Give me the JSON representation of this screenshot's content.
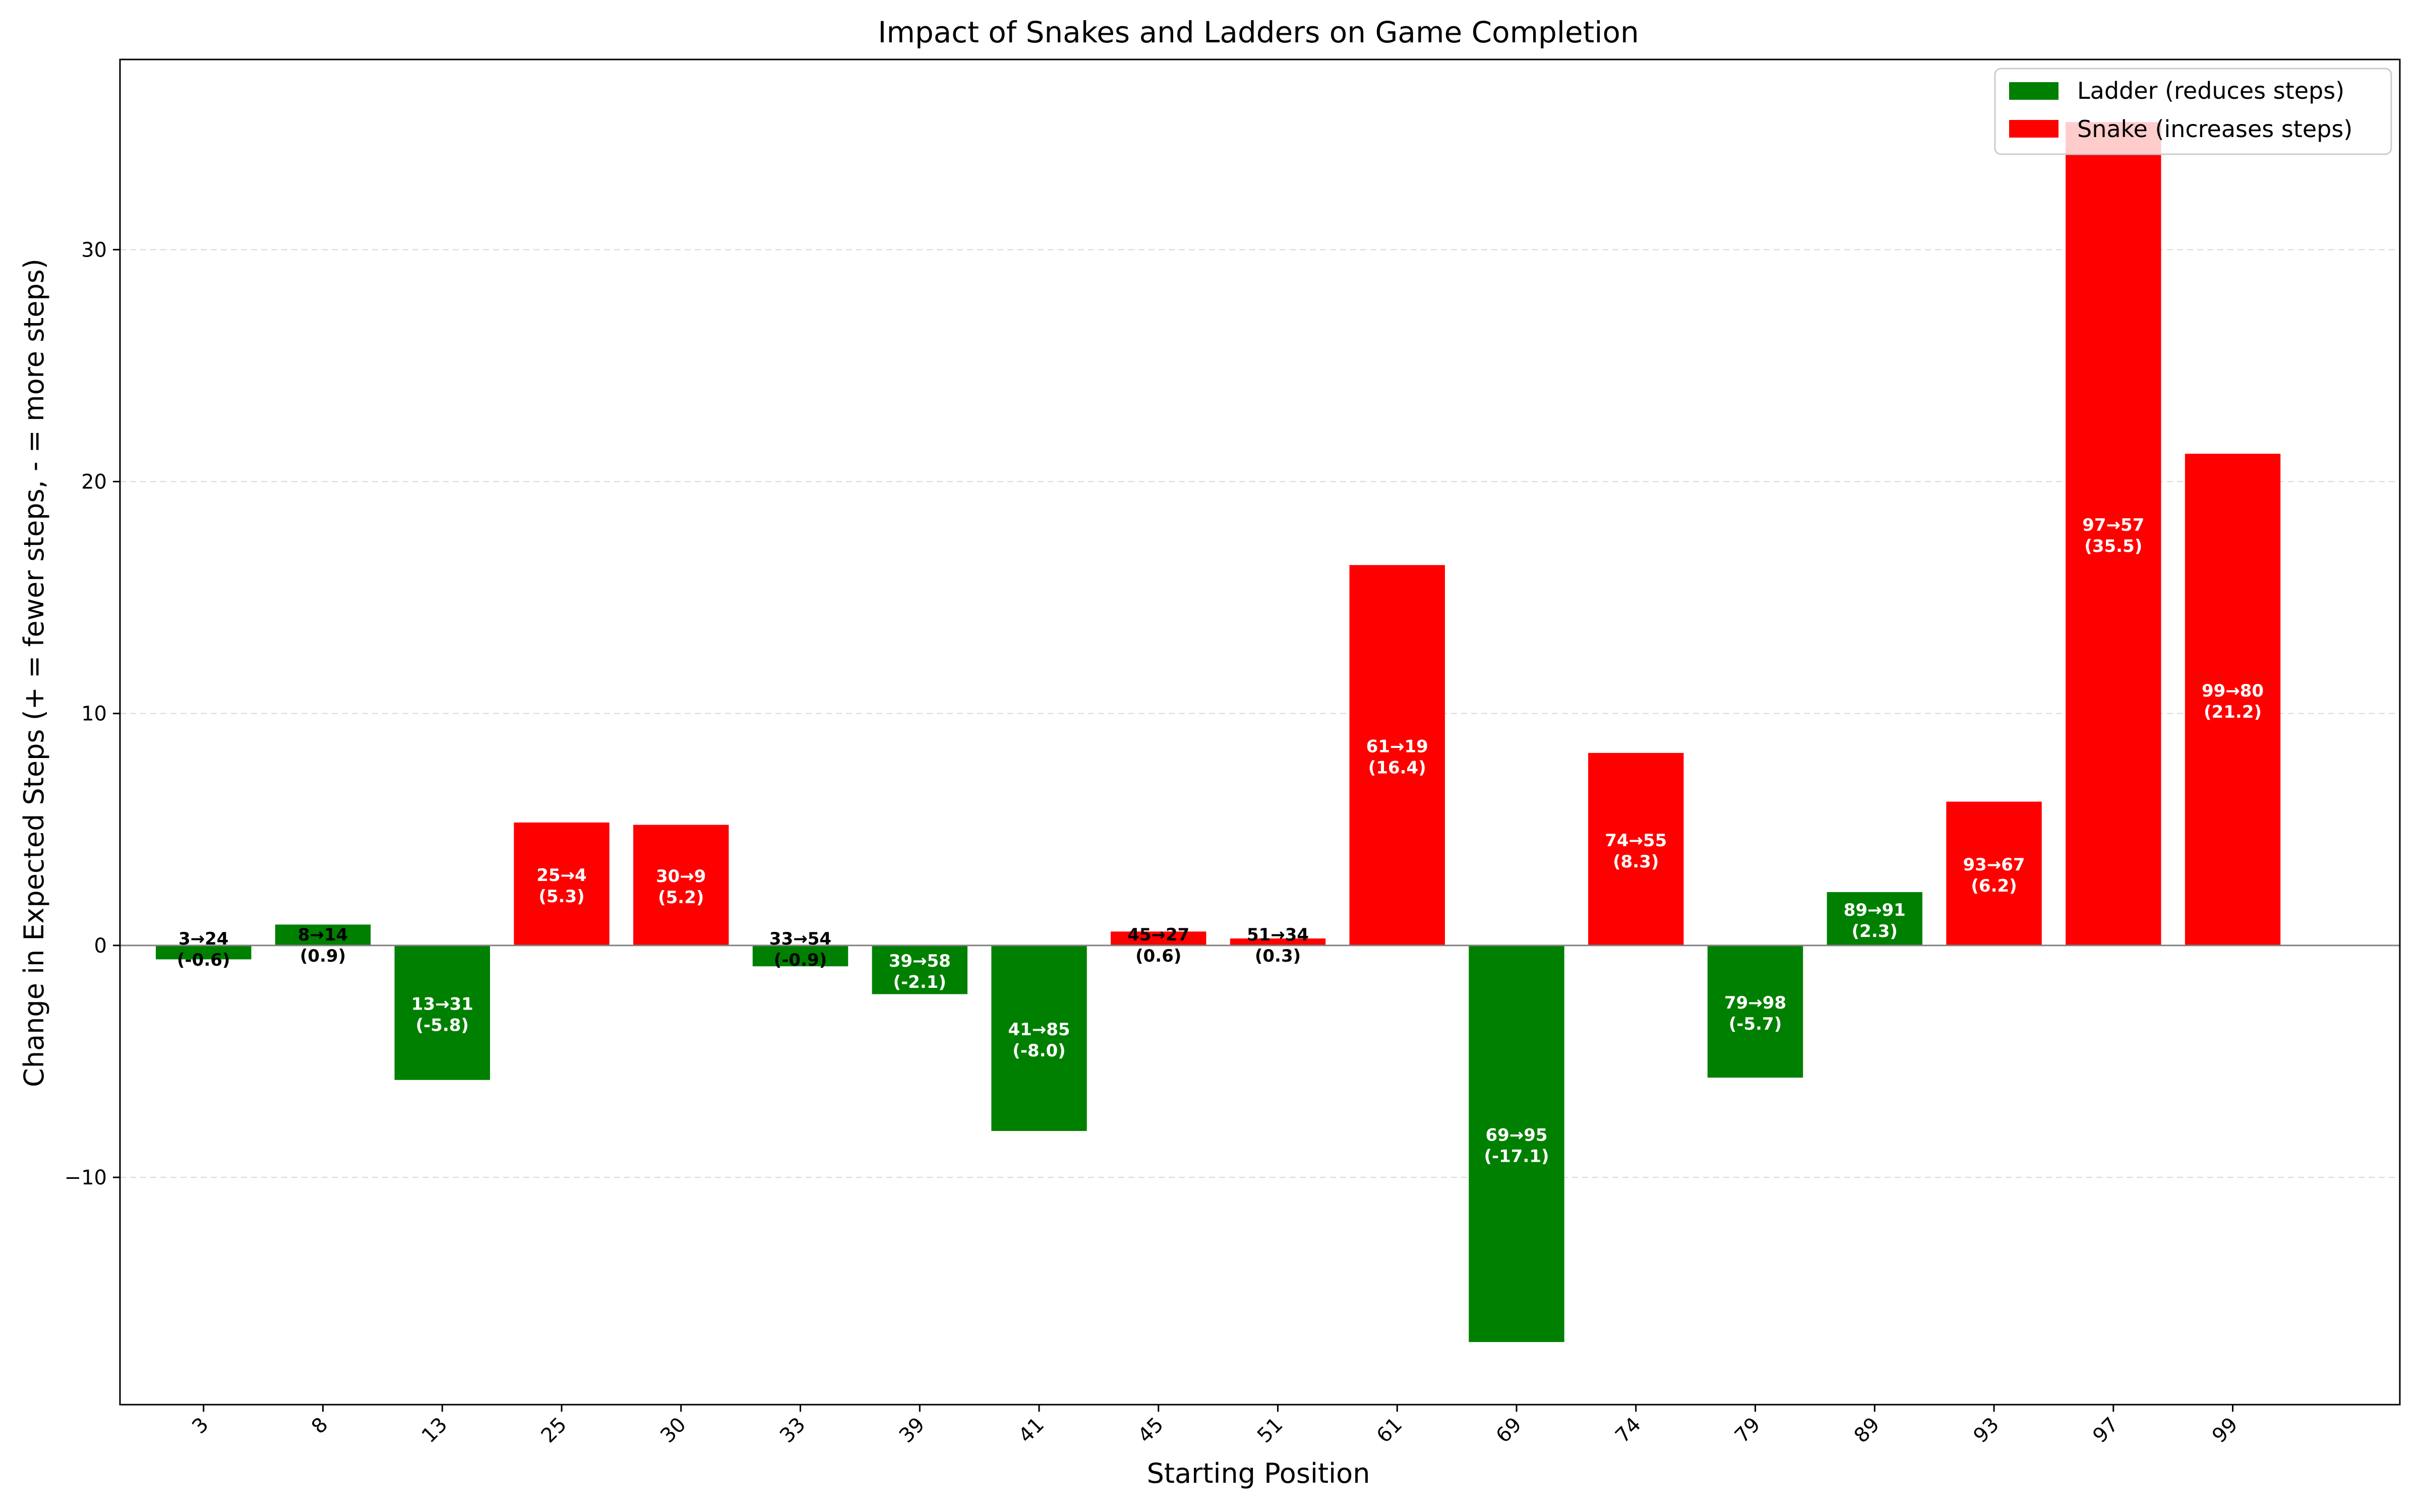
{
  "chart_data": {
    "type": "bar",
    "title": "Impact of Snakes and Ladders on Game Completion",
    "xlabel": "Starting Position",
    "ylabel": "Change in Expected Steps (+ = fewer steps, - = more steps)",
    "ylim": [
      -19.8,
      38.2
    ],
    "yticks": [
      -10,
      0,
      10,
      20,
      30
    ],
    "grid": "y dashed",
    "legend_location": "top-right",
    "legend": [
      {
        "name": "Ladder (reduces steps)",
        "color": "#008000"
      },
      {
        "name": "Snake (increases steps)",
        "color": "#ff0000"
      }
    ],
    "categories": [
      "3",
      "8",
      "13",
      "25",
      "30",
      "33",
      "39",
      "41",
      "45",
      "51",
      "61",
      "69",
      "74",
      "79",
      "89",
      "93",
      "97",
      "99"
    ],
    "bars": [
      {
        "start": "3",
        "end": "24",
        "kind": "ladder",
        "value": -0.6,
        "label_line1": "3→24",
        "label_line2": "(-0.6)"
      },
      {
        "start": "8",
        "end": "14",
        "kind": "ladder",
        "value": 0.9,
        "label_line1": "8→14",
        "label_line2": "(0.9)"
      },
      {
        "start": "13",
        "end": "31",
        "kind": "ladder",
        "value": -5.8,
        "label_line1": "13→31",
        "label_line2": "(-5.8)"
      },
      {
        "start": "25",
        "end": "4",
        "kind": "snake",
        "value": 5.3,
        "label_line1": "25→4",
        "label_line2": "(5.3)"
      },
      {
        "start": "30",
        "end": "9",
        "kind": "snake",
        "value": 5.2,
        "label_line1": "30→9",
        "label_line2": "(5.2)"
      },
      {
        "start": "33",
        "end": "54",
        "kind": "ladder",
        "value": -0.9,
        "label_line1": "33→54",
        "label_line2": "(-0.9)"
      },
      {
        "start": "39",
        "end": "58",
        "kind": "ladder",
        "value": -2.1,
        "label_line1": "39→58",
        "label_line2": "(-2.1)"
      },
      {
        "start": "41",
        "end": "85",
        "kind": "ladder",
        "value": -8.0,
        "label_line1": "41→85",
        "label_line2": "(-8.0)"
      },
      {
        "start": "45",
        "end": "27",
        "kind": "snake",
        "value": 0.6,
        "label_line1": "45→27",
        "label_line2": "(0.6)"
      },
      {
        "start": "51",
        "end": "34",
        "kind": "snake",
        "value": 0.3,
        "label_line1": "51→34",
        "label_line2": "(0.3)"
      },
      {
        "start": "61",
        "end": "19",
        "kind": "snake",
        "value": 16.4,
        "label_line1": "61→19",
        "label_line2": "(16.4)"
      },
      {
        "start": "69",
        "end": "95",
        "kind": "ladder",
        "value": -17.1,
        "label_line1": "69→95",
        "label_line2": "(-17.1)"
      },
      {
        "start": "74",
        "end": "55",
        "kind": "snake",
        "value": 8.3,
        "label_line1": "74→55",
        "label_line2": "(8.3)"
      },
      {
        "start": "79",
        "end": "98",
        "kind": "ladder",
        "value": -5.7,
        "label_line1": "79→98",
        "label_line2": "(-5.7)"
      },
      {
        "start": "89",
        "end": "91",
        "kind": "ladder",
        "value": 2.3,
        "label_line1": "89→91",
        "label_line2": "(2.3)"
      },
      {
        "start": "93",
        "end": "67",
        "kind": "snake",
        "value": 6.2,
        "label_line1": "93→67",
        "label_line2": "(6.2)"
      },
      {
        "start": "97",
        "end": "57",
        "kind": "snake",
        "value": 35.5,
        "label_line1": "97→57",
        "label_line2": "(35.5)"
      },
      {
        "start": "99",
        "end": "80",
        "kind": "snake",
        "value": 21.2,
        "label_line1": "99→80",
        "label_line2": "(21.2)"
      }
    ],
    "colors": {
      "ladder": "#008000",
      "snake": "#ff0000",
      "zero_line": "#808080",
      "grid": "#d9d9d9"
    }
  }
}
